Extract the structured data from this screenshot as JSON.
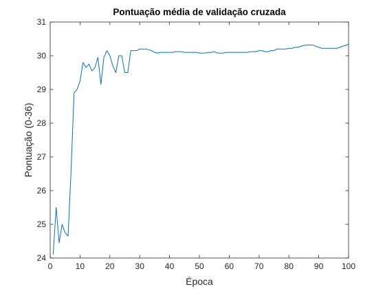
{
  "chart_data": {
    "type": "line",
    "title": "Pontuação média de validação cruzada",
    "xlabel": "Época",
    "ylabel": "Pontuação (0-36)",
    "xlim": [
      0,
      100
    ],
    "ylim": [
      24,
      31
    ],
    "xticks": [
      0,
      10,
      20,
      30,
      40,
      50,
      60,
      70,
      80,
      90,
      100
    ],
    "yticks": [
      24,
      25,
      26,
      27,
      28,
      29,
      30,
      31
    ],
    "grid": false,
    "legend": "none",
    "series": [
      {
        "color": "#0072BD",
        "x": [
          1,
          2,
          3,
          4,
          5,
          6,
          7,
          8,
          9,
          10,
          11,
          12,
          13,
          14,
          15,
          16,
          17,
          18,
          19,
          20,
          21,
          22,
          23,
          24,
          25,
          26,
          27,
          28,
          29,
          30,
          31,
          32,
          33,
          34,
          35,
          36,
          37,
          38,
          39,
          40,
          41,
          42,
          43,
          44,
          45,
          46,
          47,
          48,
          49,
          50,
          51,
          52,
          53,
          54,
          55,
          56,
          57,
          58,
          59,
          60,
          61,
          62,
          63,
          64,
          65,
          66,
          67,
          68,
          69,
          70,
          71,
          72,
          73,
          74,
          75,
          76,
          77,
          78,
          79,
          80,
          81,
          82,
          83,
          84,
          85,
          86,
          87,
          88,
          89,
          90,
          91,
          92,
          93,
          94,
          95,
          96,
          97,
          98,
          99,
          100
        ],
        "y": [
          24.1,
          25.5,
          24.45,
          25.0,
          24.75,
          24.65,
          26.6,
          28.9,
          29.0,
          29.25,
          29.8,
          29.65,
          29.75,
          29.55,
          29.65,
          29.95,
          29.15,
          29.95,
          30.15,
          30.0,
          29.7,
          29.5,
          30.0,
          30.0,
          29.5,
          29.5,
          30.15,
          30.15,
          30.15,
          30.2,
          30.2,
          30.2,
          30.18,
          30.15,
          30.1,
          30.08,
          30.1,
          30.1,
          30.1,
          30.1,
          30.1,
          30.12,
          30.12,
          30.12,
          30.1,
          30.1,
          30.1,
          30.1,
          30.1,
          30.08,
          30.08,
          30.08,
          30.1,
          30.1,
          30.12,
          30.08,
          30.08,
          30.08,
          30.1,
          30.1,
          30.1,
          30.1,
          30.1,
          30.1,
          30.1,
          30.1,
          30.12,
          30.12,
          30.12,
          30.15,
          30.15,
          30.12,
          30.12,
          30.15,
          30.15,
          30.2,
          30.2,
          30.2,
          30.2,
          30.22,
          30.22,
          30.25,
          30.25,
          30.28,
          30.3,
          30.32,
          30.32,
          30.32,
          30.28,
          30.25,
          30.22,
          30.22,
          30.22,
          30.22,
          30.22,
          30.22,
          30.25,
          30.28,
          30.3,
          30.35
        ]
      }
    ]
  }
}
